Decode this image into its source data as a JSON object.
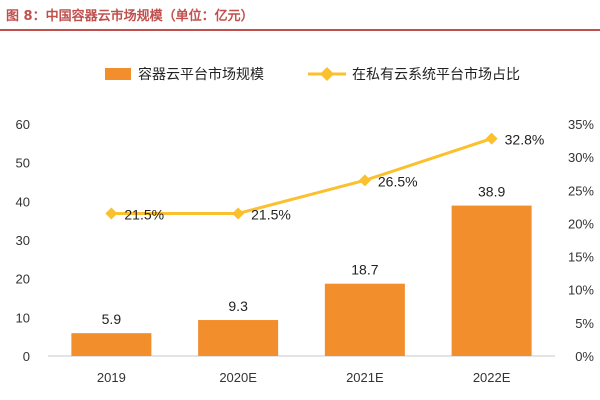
{
  "figure": {
    "title": "图 8：中国容器云市场规模（单位：亿元）"
  },
  "legend": {
    "bar_label": "容器云平台市场规模",
    "line_label": "在私有云系统平台市场占比"
  },
  "colors": {
    "bar": "#f28e2b",
    "line": "#fbc02d",
    "title": "#c0504d",
    "axis": "#c8c8c8"
  },
  "chart_data": {
    "type": "bar",
    "title": "中国容器云市场规模（单位：亿元）",
    "categories": [
      "2019",
      "2020E",
      "2021E",
      "2022E"
    ],
    "series": [
      {
        "name": "容器云平台市场规模",
        "type": "bar",
        "axis": "left",
        "values": [
          5.9,
          9.3,
          18.7,
          38.9
        ],
        "value_labels": [
          "5.9",
          "9.3",
          "18.7",
          "38.9"
        ]
      },
      {
        "name": "在私有云系统平台市场占比",
        "type": "line",
        "axis": "right",
        "values": [
          21.5,
          21.5,
          26.5,
          32.8
        ],
        "value_labels": [
          "21.5%",
          "21.5%",
          "26.5%",
          "32.8%"
        ]
      }
    ],
    "left_axis": {
      "range": [
        0,
        60
      ],
      "ticks": [
        "0",
        "10",
        "20",
        "30",
        "40",
        "50",
        "60"
      ]
    },
    "right_axis": {
      "range": [
        0,
        35
      ],
      "ticks": [
        "0%",
        "5%",
        "10%",
        "15%",
        "20%",
        "25%",
        "30%",
        "35%"
      ]
    },
    "xlabel": "",
    "ylabel": "",
    "grid": false,
    "legend_position": "top"
  }
}
